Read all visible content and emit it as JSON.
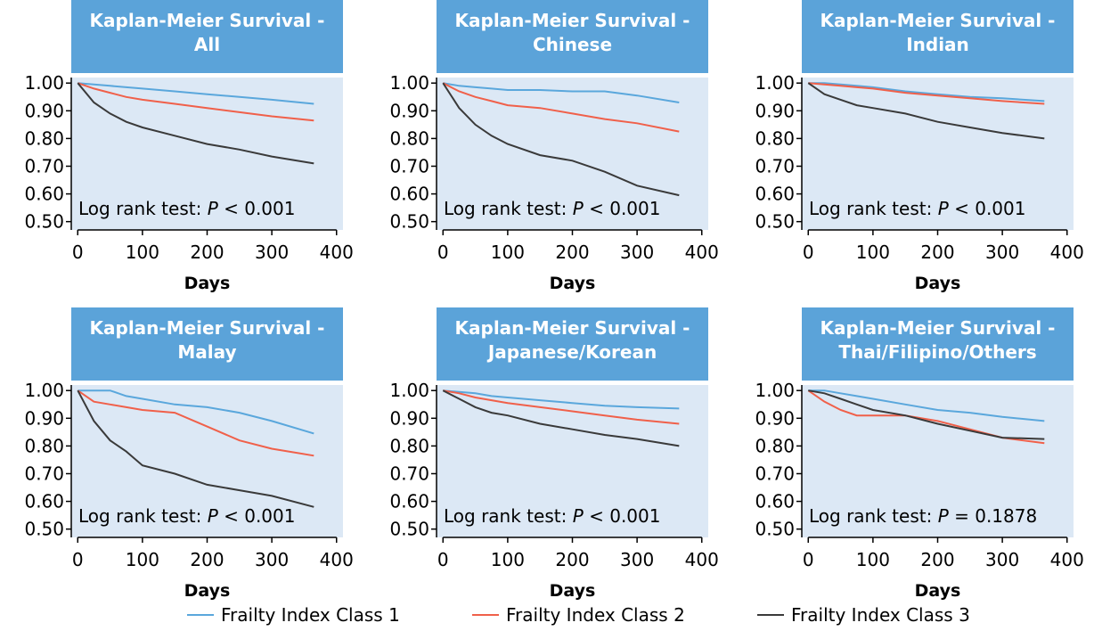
{
  "chart_data": [
    {
      "type": "line",
      "title": [
        "Kaplan-Meier Survival -",
        "All"
      ],
      "x_label": "Days",
      "annotation": [
        "Log rank test: ",
        "P",
        " < 0.001"
      ],
      "x": [
        0,
        25,
        50,
        75,
        100,
        150,
        200,
        250,
        300,
        365
      ],
      "xlim": [
        -10,
        410
      ],
      "xticks": [
        0,
        100,
        200,
        300,
        400
      ],
      "ylim": [
        0.47,
        1.02
      ],
      "yticks": [
        {
          "value": 0.5,
          "label": "0.50"
        },
        {
          "value": 0.6,
          "label": "0.60"
        },
        {
          "value": 0.7,
          "label": "0.70"
        },
        {
          "value": 0.8,
          "label": "0.80"
        },
        {
          "value": 0.9,
          "label": "0.90"
        },
        {
          "value": 1,
          "label": "1.00"
        }
      ],
      "series": [
        {
          "values": [
            1,
            0.995,
            0.99,
            0.985,
            0.98,
            0.97,
            0.96,
            0.95,
            0.94,
            0.925
          ]
        },
        {
          "values": [
            1,
            0.98,
            0.965,
            0.95,
            0.94,
            0.925,
            0.91,
            0.895,
            0.88,
            0.865
          ]
        },
        {
          "values": [
            1,
            0.93,
            0.89,
            0.86,
            0.84,
            0.81,
            0.78,
            0.76,
            0.735,
            0.71
          ]
        }
      ]
    },
    {
      "type": "line",
      "title": [
        "Kaplan-Meier Survival -",
        "Chinese"
      ],
      "x_label": "Days",
      "annotation": [
        "Log rank test: ",
        "P",
        " < 0.001"
      ],
      "x": [
        0,
        25,
        50,
        75,
        100,
        150,
        200,
        250,
        300,
        365
      ],
      "xlim": [
        -10,
        410
      ],
      "xticks": [
        0,
        100,
        200,
        300,
        400
      ],
      "ylim": [
        0.47,
        1.02
      ],
      "yticks": [
        {
          "value": 0.5,
          "label": "0.50"
        },
        {
          "value": 0.6,
          "label": "0.60"
        },
        {
          "value": 0.7,
          "label": "0.70"
        },
        {
          "value": 0.8,
          "label": "0.80"
        },
        {
          "value": 0.9,
          "label": "0.90"
        },
        {
          "value": 1,
          "label": "1.00"
        }
      ],
      "series": [
        {
          "values": [
            1,
            0.99,
            0.985,
            0.98,
            0.975,
            0.975,
            0.97,
            0.97,
            0.955,
            0.93
          ]
        },
        {
          "values": [
            1,
            0.97,
            0.95,
            0.935,
            0.92,
            0.91,
            0.89,
            0.87,
            0.855,
            0.825
          ]
        },
        {
          "values": [
            1,
            0.91,
            0.85,
            0.81,
            0.78,
            0.74,
            0.72,
            0.68,
            0.63,
            0.595
          ]
        }
      ]
    },
    {
      "type": "line",
      "title": [
        "Kaplan-Meier Survival -",
        "Indian"
      ],
      "x_label": "Days",
      "annotation": [
        "Log rank test: ",
        "P",
        " < 0.001"
      ],
      "x": [
        0,
        25,
        50,
        75,
        100,
        150,
        200,
        250,
        300,
        365
      ],
      "xlim": [
        -10,
        410
      ],
      "xticks": [
        0,
        100,
        200,
        300,
        400
      ],
      "ylim": [
        0.47,
        1.02
      ],
      "yticks": [
        {
          "value": 0.5,
          "label": "0.50"
        },
        {
          "value": 0.6,
          "label": "0.60"
        },
        {
          "value": 0.7,
          "label": "0.70"
        },
        {
          "value": 0.8,
          "label": "0.80"
        },
        {
          "value": 0.9,
          "label": "0.90"
        },
        {
          "value": 1,
          "label": "1.00"
        }
      ],
      "series": [
        {
          "values": [
            1,
            1,
            0.995,
            0.99,
            0.985,
            0.97,
            0.96,
            0.95,
            0.945,
            0.935
          ]
        },
        {
          "values": [
            1,
            0.995,
            0.99,
            0.985,
            0.98,
            0.965,
            0.955,
            0.945,
            0.935,
            0.925
          ]
        },
        {
          "values": [
            1,
            0.96,
            0.94,
            0.92,
            0.91,
            0.89,
            0.86,
            0.84,
            0.82,
            0.8
          ]
        }
      ]
    },
    {
      "type": "line",
      "title": [
        "Kaplan-Meier Survival -",
        "Malay"
      ],
      "x_label": "Days",
      "annotation": [
        "Log rank test: ",
        "P",
        " < 0.001"
      ],
      "x": [
        0,
        25,
        50,
        75,
        100,
        150,
        200,
        250,
        300,
        365
      ],
      "xlim": [
        -10,
        410
      ],
      "xticks": [
        0,
        100,
        200,
        300,
        400
      ],
      "ylim": [
        0.47,
        1.02
      ],
      "yticks": [
        {
          "value": 0.5,
          "label": "0.50"
        },
        {
          "value": 0.6,
          "label": "0.60"
        },
        {
          "value": 0.7,
          "label": "0.70"
        },
        {
          "value": 0.8,
          "label": "0.80"
        },
        {
          "value": 0.9,
          "label": "0.90"
        },
        {
          "value": 1,
          "label": "1.00"
        }
      ],
      "series": [
        {
          "values": [
            1,
            1,
            1,
            0.98,
            0.97,
            0.95,
            0.94,
            0.92,
            0.89,
            0.845
          ]
        },
        {
          "values": [
            1,
            0.96,
            0.95,
            0.94,
            0.93,
            0.92,
            0.87,
            0.82,
            0.79,
            0.765
          ]
        },
        {
          "values": [
            1,
            0.89,
            0.82,
            0.78,
            0.73,
            0.7,
            0.66,
            0.64,
            0.62,
            0.58
          ]
        }
      ]
    },
    {
      "type": "line",
      "title": [
        "Kaplan-Meier Survival -",
        "Japanese/Korean"
      ],
      "x_label": "Days",
      "annotation": [
        "Log rank test: ",
        "P",
        " < 0.001"
      ],
      "x": [
        0,
        25,
        50,
        75,
        100,
        150,
        200,
        250,
        300,
        365
      ],
      "xlim": [
        -10,
        410
      ],
      "xticks": [
        0,
        100,
        200,
        300,
        400
      ],
      "ylim": [
        0.47,
        1.02
      ],
      "yticks": [
        {
          "value": 0.5,
          "label": "0.50"
        },
        {
          "value": 0.6,
          "label": "0.60"
        },
        {
          "value": 0.7,
          "label": "0.70"
        },
        {
          "value": 0.8,
          "label": "0.80"
        },
        {
          "value": 0.9,
          "label": "0.90"
        },
        {
          "value": 1,
          "label": "1.00"
        }
      ],
      "series": [
        {
          "values": [
            1,
            0.995,
            0.99,
            0.98,
            0.975,
            0.965,
            0.955,
            0.945,
            0.94,
            0.935
          ]
        },
        {
          "values": [
            1,
            0.99,
            0.975,
            0.965,
            0.955,
            0.94,
            0.925,
            0.91,
            0.895,
            0.88
          ]
        },
        {
          "values": [
            1,
            0.97,
            0.94,
            0.92,
            0.91,
            0.88,
            0.86,
            0.84,
            0.825,
            0.8
          ]
        }
      ]
    },
    {
      "type": "line",
      "title": [
        "Kaplan-Meier Survival -",
        "Thai/Filipino/Others"
      ],
      "x_label": "Days",
      "annotation": [
        "Log rank test: ",
        "P",
        " = 0.1878"
      ],
      "x": [
        0,
        25,
        50,
        75,
        100,
        150,
        200,
        250,
        300,
        365
      ],
      "xlim": [
        -10,
        410
      ],
      "xticks": [
        0,
        100,
        200,
        300,
        400
      ],
      "ylim": [
        0.47,
        1.02
      ],
      "yticks": [
        {
          "value": 0.5,
          "label": "0.50"
        },
        {
          "value": 0.6,
          "label": "0.60"
        },
        {
          "value": 0.7,
          "label": "0.70"
        },
        {
          "value": 0.8,
          "label": "0.80"
        },
        {
          "value": 0.9,
          "label": "0.90"
        },
        {
          "value": 1,
          "label": "1.00"
        }
      ],
      "series": [
        {
          "values": [
            1,
            1,
            0.99,
            0.98,
            0.97,
            0.95,
            0.93,
            0.92,
            0.905,
            0.89
          ]
        },
        {
          "values": [
            1,
            0.96,
            0.93,
            0.91,
            0.91,
            0.91,
            0.89,
            0.86,
            0.83,
            0.81
          ]
        },
        {
          "values": [
            1,
            0.99,
            0.97,
            0.95,
            0.93,
            0.91,
            0.88,
            0.855,
            0.83,
            0.825
          ]
        }
      ]
    }
  ],
  "legend": [
    {
      "name": "Frailty Index Class 1",
      "color": "#5aa7dc"
    },
    {
      "name": "Frailty Index Class 2",
      "color": "#f0604a"
    },
    {
      "name": "Frailty Index Class 3",
      "color": "#3a3a3a"
    }
  ]
}
